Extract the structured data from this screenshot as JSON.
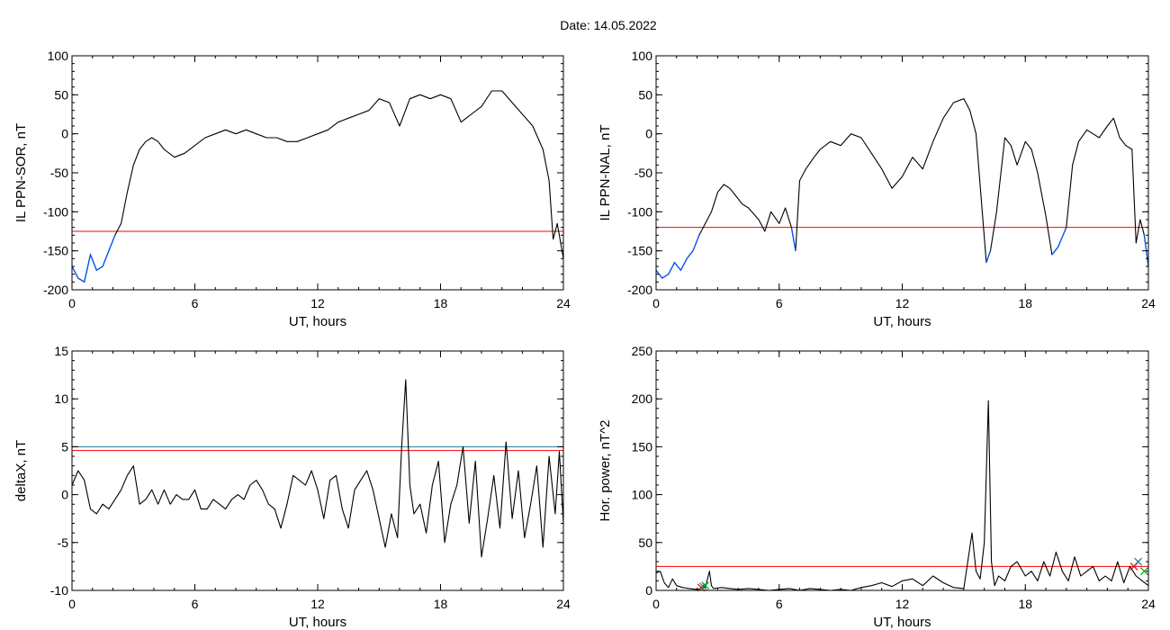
{
  "figure": {
    "title": "Date:  14.05.2022"
  },
  "chart_data": [
    {
      "type": "line",
      "xlabel": "UT, hours",
      "ylabel": "IL PPN-SOR, nT",
      "xlim": [
        0,
        24
      ],
      "ylim": [
        -200,
        100
      ],
      "xticks": [
        "0",
        "6",
        "12",
        "18",
        "24"
      ],
      "yticks": [
        "100",
        "50",
        "0",
        "-50",
        "-100",
        "-150",
        "-200"
      ],
      "reference_lines": [
        {
          "y": -125,
          "color": "#ff0000"
        }
      ],
      "highlight_below_threshold_color": "#0055ff",
      "series": [
        {
          "color": "#000000",
          "x": [
            0,
            0.3,
            0.6,
            0.9,
            1.2,
            1.5,
            1.8,
            2.1,
            2.4,
            2.7,
            3.0,
            3.3,
            3.6,
            3.9,
            4.2,
            4.5,
            5.0,
            5.5,
            6.0,
            6.5,
            7.0,
            7.5,
            8.0,
            8.5,
            9.0,
            9.5,
            10.0,
            10.5,
            11.0,
            11.5,
            12.0,
            12.5,
            13.0,
            13.5,
            14.0,
            14.5,
            15.0,
            15.5,
            16.0,
            16.5,
            17.0,
            17.5,
            18.0,
            18.5,
            19.0,
            19.5,
            20.0,
            20.5,
            21.0,
            21.5,
            22.0,
            22.5,
            23.0,
            23.3,
            23.5,
            23.7,
            24.0
          ],
          "y": [
            -170,
            -185,
            -190,
            -155,
            -175,
            -170,
            -150,
            -130,
            -115,
            -75,
            -40,
            -20,
            -10,
            -5,
            -10,
            -20,
            -30,
            -25,
            -15,
            -5,
            0,
            5,
            0,
            5,
            0,
            -5,
            -5,
            -10,
            -10,
            -5,
            0,
            5,
            15,
            20,
            25,
            30,
            45,
            40,
            10,
            45,
            50,
            45,
            50,
            45,
            15,
            25,
            35,
            55,
            55,
            40,
            25,
            10,
            -20,
            -60,
            -135,
            -115,
            -160
          ]
        }
      ]
    },
    {
      "type": "line",
      "xlabel": "UT, hours",
      "ylabel": "IL PPN-NAL, nT",
      "xlim": [
        0,
        24
      ],
      "ylim": [
        -200,
        100
      ],
      "xticks": [
        "0",
        "6",
        "12",
        "18",
        "24"
      ],
      "yticks": [
        "100",
        "50",
        "0",
        "-50",
        "-100",
        "-150",
        "-200"
      ],
      "reference_lines": [
        {
          "y": -120,
          "color": "#ff0000"
        }
      ],
      "highlight_below_threshold_color": "#0055ff",
      "series": [
        {
          "color": "#000000",
          "x": [
            0,
            0.3,
            0.6,
            0.9,
            1.2,
            1.5,
            1.8,
            2.1,
            2.4,
            2.7,
            3.0,
            3.3,
            3.6,
            3.9,
            4.2,
            4.5,
            5.0,
            5.3,
            5.6,
            6.0,
            6.3,
            6.6,
            6.8,
            7.0,
            7.3,
            7.7,
            8.0,
            8.5,
            9.0,
            9.5,
            10.0,
            10.5,
            11.0,
            11.5,
            12.0,
            12.5,
            13.0,
            13.5,
            14.0,
            14.5,
            15.0,
            15.3,
            15.6,
            15.9,
            16.1,
            16.3,
            16.6,
            17.0,
            17.3,
            17.6,
            18.0,
            18.3,
            18.6,
            19.0,
            19.3,
            19.6,
            20.0,
            20.3,
            20.6,
            21.0,
            21.3,
            21.6,
            22.0,
            22.3,
            22.6,
            22.9,
            23.2,
            23.4,
            23.6,
            23.8,
            24.0
          ],
          "y": [
            -175,
            -185,
            -180,
            -165,
            -175,
            -160,
            -150,
            -130,
            -115,
            -100,
            -75,
            -65,
            -70,
            -80,
            -90,
            -95,
            -110,
            -125,
            -100,
            -115,
            -95,
            -120,
            -150,
            -60,
            -45,
            -30,
            -20,
            -10,
            -15,
            0,
            -5,
            -25,
            -45,
            -70,
            -55,
            -30,
            -45,
            -10,
            20,
            40,
            45,
            30,
            0,
            -100,
            -165,
            -150,
            -100,
            -5,
            -15,
            -40,
            -10,
            -20,
            -50,
            -105,
            -155,
            -145,
            -120,
            -40,
            -10,
            5,
            0,
            -5,
            10,
            20,
            -5,
            -15,
            -20,
            -140,
            -110,
            -130,
            -170
          ]
        }
      ]
    },
    {
      "type": "line",
      "xlabel": "UT, hours",
      "ylabel": "deltaX, nT",
      "xlim": [
        0,
        24
      ],
      "ylim": [
        -10,
        15
      ],
      "xticks": [
        "0",
        "6",
        "12",
        "18",
        "24"
      ],
      "yticks": [
        "15",
        "10",
        "5",
        "0",
        "-5",
        "-10"
      ],
      "reference_lines": [
        {
          "y": 5.0,
          "color": "#1a7a9a"
        },
        {
          "y": 4.6,
          "color": "#ff0000"
        }
      ],
      "series": [
        {
          "color": "#000000",
          "x": [
            0,
            0.3,
            0.6,
            0.9,
            1.2,
            1.5,
            1.8,
            2.1,
            2.4,
            2.7,
            3.0,
            3.3,
            3.6,
            3.9,
            4.2,
            4.5,
            4.8,
            5.1,
            5.4,
            5.7,
            6.0,
            6.3,
            6.6,
            6.9,
            7.2,
            7.5,
            7.8,
            8.1,
            8.4,
            8.7,
            9.0,
            9.3,
            9.6,
            9.9,
            10.2,
            10.5,
            10.8,
            11.1,
            11.4,
            11.7,
            12.0,
            12.3,
            12.6,
            12.9,
            13.2,
            13.5,
            13.8,
            14.1,
            14.4,
            14.7,
            15.0,
            15.3,
            15.6,
            15.9,
            16.1,
            16.3,
            16.5,
            16.7,
            17.0,
            17.3,
            17.6,
            17.9,
            18.2,
            18.5,
            18.8,
            19.1,
            19.4,
            19.7,
            20.0,
            20.3,
            20.6,
            20.9,
            21.2,
            21.5,
            21.8,
            22.1,
            22.4,
            22.7,
            23.0,
            23.3,
            23.6,
            23.8,
            24.0
          ],
          "y": [
            1.0,
            2.5,
            1.5,
            -1.5,
            -2.0,
            -1.0,
            -1.5,
            -0.5,
            0.5,
            2.0,
            3.0,
            -1.0,
            -0.5,
            0.5,
            -1.0,
            0.5,
            -1.0,
            0.0,
            -0.5,
            -0.5,
            0.5,
            -1.5,
            -1.5,
            -0.5,
            -1.0,
            -1.5,
            -0.5,
            0.0,
            -0.5,
            1.0,
            1.5,
            0.5,
            -1.0,
            -1.5,
            -3.5,
            -1.0,
            2.0,
            1.5,
            1.0,
            2.5,
            0.5,
            -2.5,
            1.5,
            2.0,
            -1.5,
            -3.5,
            0.5,
            1.5,
            2.5,
            0.5,
            -2.5,
            -5.5,
            -2.0,
            -4.5,
            5.0,
            12.0,
            1.0,
            -2.0,
            -1.0,
            -4.0,
            1.0,
            3.5,
            -5.0,
            -1.0,
            1.0,
            5.0,
            -3.0,
            3.5,
            -6.5,
            -2.5,
            2.0,
            -3.5,
            5.5,
            -2.5,
            2.5,
            -4.5,
            -1.0,
            3.0,
            -5.5,
            4.0,
            -2.0,
            4.5,
            -3.0
          ]
        }
      ]
    },
    {
      "type": "line",
      "xlabel": "UT, hours",
      "ylabel": "Hor. power, nT^2",
      "xlim": [
        0,
        24
      ],
      "ylim": [
        0,
        250
      ],
      "xticks": [
        "0",
        "6",
        "12",
        "18",
        "24"
      ],
      "yticks": [
        "250",
        "200",
        "150",
        "100",
        "50",
        "0"
      ],
      "reference_lines": [
        {
          "y": 25,
          "color": "#ff0000"
        }
      ],
      "markers": [
        {
          "x": 2.2,
          "y": 3,
          "color": "#ff0000"
        },
        {
          "x": 2.4,
          "y": 5,
          "color": "#00aa00"
        },
        {
          "x": 2.3,
          "y": 4,
          "color": "#1a7a9a"
        },
        {
          "x": 23.3,
          "y": 25,
          "color": "#ff0000"
        },
        {
          "x": 23.5,
          "y": 30,
          "color": "#1a7a9a"
        },
        {
          "x": 23.8,
          "y": 20,
          "color": "#00aa00"
        }
      ],
      "series": [
        {
          "color": "#000000",
          "x": [
            0,
            0.2,
            0.4,
            0.6,
            0.8,
            1.0,
            1.3,
            1.6,
            2.0,
            2.4,
            2.6,
            2.7,
            2.8,
            3.2,
            3.6,
            4.0,
            4.5,
            5.0,
            5.5,
            6.0,
            6.5,
            7.0,
            7.5,
            8.0,
            8.5,
            9.0,
            9.5,
            10.0,
            10.5,
            11.0,
            11.5,
            12.0,
            12.5,
            13.0,
            13.5,
            14.0,
            14.5,
            15.0,
            15.4,
            15.6,
            15.8,
            16.0,
            16.2,
            16.35,
            16.5,
            16.7,
            17.0,
            17.3,
            17.6,
            18.0,
            18.3,
            18.6,
            18.9,
            19.2,
            19.5,
            19.8,
            20.1,
            20.4,
            20.7,
            21.0,
            21.3,
            21.6,
            21.9,
            22.2,
            22.5,
            22.8,
            23.1,
            23.4,
            23.7,
            24.0
          ],
          "y": [
            18,
            20,
            8,
            3,
            12,
            5,
            3,
            2,
            1,
            3,
            20,
            5,
            2,
            3,
            2,
            1,
            2,
            1,
            0,
            1,
            2,
            0,
            2,
            1,
            0,
            1,
            0,
            3,
            5,
            8,
            4,
            10,
            12,
            5,
            15,
            8,
            3,
            2,
            60,
            20,
            12,
            50,
            198,
            30,
            5,
            15,
            10,
            25,
            30,
            15,
            20,
            10,
            30,
            15,
            40,
            20,
            10,
            35,
            15,
            20,
            25,
            10,
            15,
            10,
            30,
            8,
            25,
            15,
            10,
            5
          ]
        }
      ]
    }
  ]
}
